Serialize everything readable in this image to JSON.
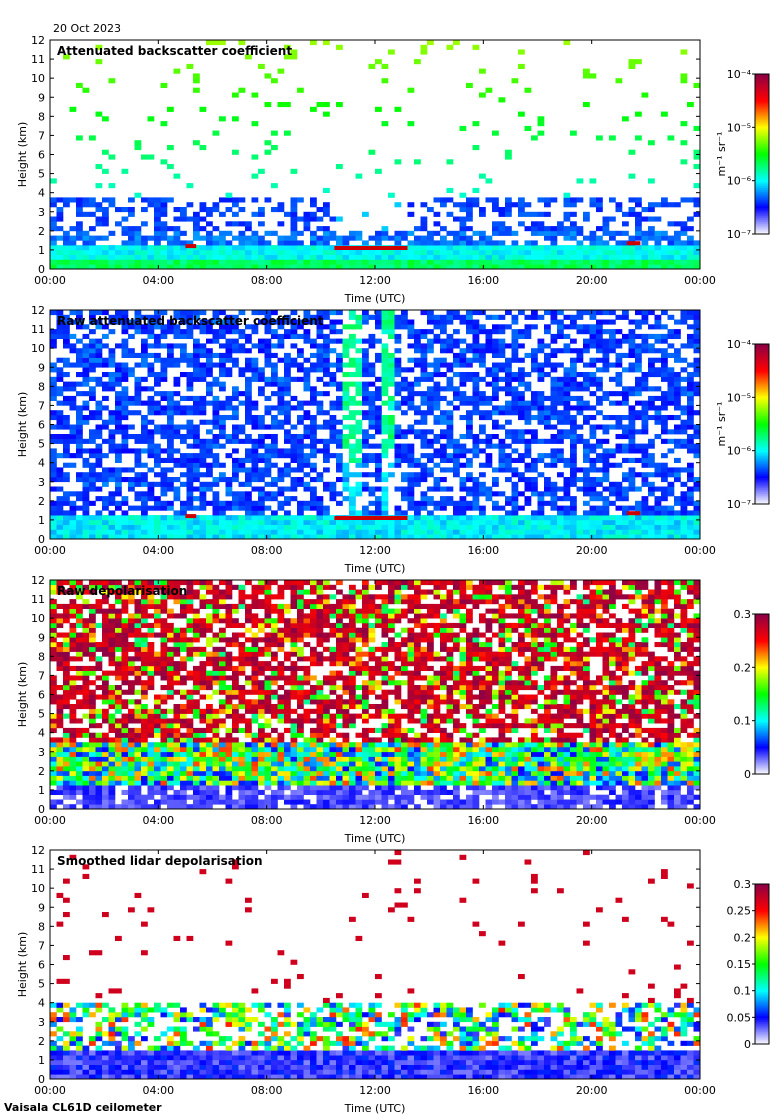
{
  "date": "20 Oct 2023",
  "instrument": "Vaisala CL61D ceilometer",
  "chart_data": [
    {
      "type": "heatmap",
      "title": "Attenuated backscatter coefficient",
      "xlabel": "Time (UTC)",
      "ylabel": "Height (km)",
      "x_ticks": [
        "00:00",
        "04:00",
        "08:00",
        "12:00",
        "16:00",
        "20:00",
        "00:00"
      ],
      "y_ticks": [
        0,
        1,
        2,
        3,
        4,
        5,
        6,
        7,
        8,
        9,
        10,
        11,
        12
      ],
      "xlim_hours": [
        0,
        24
      ],
      "ylim": [
        0,
        12
      ],
      "colorbar": {
        "scale": "log",
        "range": [
          1e-07,
          0.0001
        ],
        "label": "m⁻¹ sr⁻¹",
        "ticks": [
          "10⁻⁷",
          "10⁻⁶",
          "10⁻⁵",
          "10⁻⁴"
        ],
        "colors": [
          "#ffffff",
          "#0000ff",
          "#00ffff",
          "#00ff00",
          "#ffff00",
          "#ff0000",
          "#8b0046"
        ]
      },
      "features": {
        "boundary_layer_top_km": 1.2,
        "aerosol_layer_top_km": 3.8,
        "cloud_events": [
          {
            "start_h": 5.0,
            "end_h": 5.4,
            "height_km": 1.2
          },
          {
            "start_h": 10.5,
            "end_h": 13.2,
            "height_km": 1.1
          },
          {
            "start_h": 21.3,
            "end_h": 21.8,
            "height_km": 1.35
          }
        ]
      }
    },
    {
      "type": "heatmap",
      "title": "Raw attenuated backscatter coefficient",
      "xlabel": "Time (UTC)",
      "ylabel": "Height (km)",
      "x_ticks": [
        "00:00",
        "04:00",
        "08:00",
        "12:00",
        "16:00",
        "20:00",
        "00:00"
      ],
      "y_ticks": [
        0,
        1,
        2,
        3,
        4,
        5,
        6,
        7,
        8,
        9,
        10,
        11,
        12
      ],
      "xlim_hours": [
        0,
        24
      ],
      "ylim": [
        0,
        12
      ],
      "colorbar": {
        "scale": "log",
        "range": [
          1e-07,
          0.0001
        ],
        "label": "m⁻¹ sr⁻¹",
        "ticks": [
          "10⁻⁷",
          "10⁻⁶",
          "10⁻⁵",
          "10⁻⁴"
        ],
        "colors": [
          "#ffffff",
          "#0000ff",
          "#00ffff",
          "#00ff00",
          "#ffff00",
          "#ff0000",
          "#8b0046"
        ]
      },
      "features": {
        "boundary_layer_top_km": 1.2,
        "cloud_events": [
          {
            "start_h": 5.0,
            "end_h": 5.4,
            "height_km": 1.2
          },
          {
            "start_h": 10.5,
            "end_h": 13.2,
            "height_km": 1.1
          },
          {
            "start_h": 21.3,
            "end_h": 21.8,
            "height_km": 1.35
          }
        ]
      }
    },
    {
      "type": "heatmap",
      "title": "Raw depolarisation",
      "xlabel": "Time (UTC)",
      "ylabel": "Height (km)",
      "x_ticks": [
        "00:00",
        "04:00",
        "08:00",
        "12:00",
        "16:00",
        "20:00",
        "00:00"
      ],
      "y_ticks": [
        0,
        1,
        2,
        3,
        4,
        5,
        6,
        7,
        8,
        9,
        10,
        11,
        12
      ],
      "xlim_hours": [
        0,
        24
      ],
      "ylim": [
        0,
        12
      ],
      "colorbar": {
        "scale": "linear",
        "range": [
          0,
          0.3
        ],
        "label": "",
        "ticks": [
          "0",
          "0.1",
          "0.2",
          "0.3"
        ],
        "colors": [
          "#ffffff",
          "#0000ff",
          "#00ffff",
          "#00ff00",
          "#ffff00",
          "#ff0000",
          "#8b0046"
        ]
      }
    },
    {
      "type": "heatmap",
      "title": "Smoothed lidar depolarisation",
      "xlabel": "Time (UTC)",
      "ylabel": "Height (km)",
      "x_ticks": [
        "00:00",
        "04:00",
        "08:00",
        "12:00",
        "16:00",
        "20:00",
        "00:00"
      ],
      "y_ticks": [
        0,
        1,
        2,
        3,
        4,
        5,
        6,
        7,
        8,
        9,
        10,
        11,
        12
      ],
      "xlim_hours": [
        0,
        24
      ],
      "ylim": [
        0,
        12
      ],
      "colorbar": {
        "scale": "linear",
        "range": [
          0,
          0.3
        ],
        "label": "",
        "ticks": [
          "0",
          "0.05",
          "0.1",
          "0.15",
          "0.2",
          "0.25",
          "0.3"
        ],
        "colors": [
          "#ffffff",
          "#0000ff",
          "#00ffff",
          "#00ff00",
          "#ffff00",
          "#ff0000",
          "#8b0046"
        ]
      }
    }
  ]
}
